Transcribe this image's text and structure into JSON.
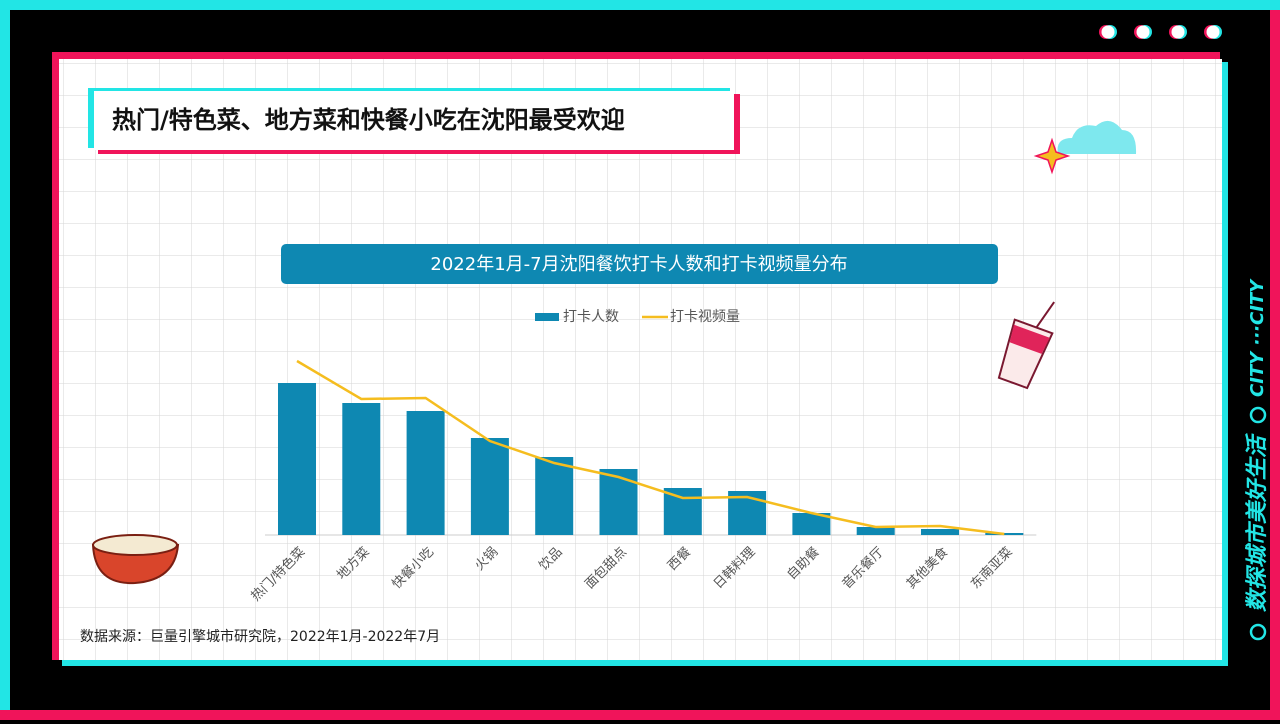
{
  "header": {
    "title": "热门/特色菜、地方菜和快餐小吃在沈阳最受欢迎"
  },
  "source": "数据来源：巨量引擎城市研究院，2022年1月-2022年7月",
  "side_text": {
    "main": "数探城市美好生活",
    "tag": "CITY ···CITY"
  },
  "chart_data": {
    "type": "bar",
    "title": "2022年1月-7月沈阳餐饮打卡人数和打卡视频量分布",
    "categories": [
      "热门/特色菜",
      "地方菜",
      "快餐小吃",
      "火锅",
      "饮品",
      "面包甜点",
      "西餐",
      "日韩料理",
      "自助餐",
      "音乐餐厅",
      "其他美食",
      "东南亚菜"
    ],
    "series": [
      {
        "name": "打卡人数",
        "type": "bar",
        "color": "#0e88b2",
        "values": [
          152,
          132,
          124,
          97,
          78,
          66,
          47,
          44,
          22,
          8,
          6,
          2
        ]
      },
      {
        "name": "打卡视频量",
        "type": "line",
        "color": "#f5bd1f",
        "values": [
          174,
          136,
          137,
          94,
          72,
          58,
          37,
          38,
          22,
          8,
          9,
          1
        ]
      }
    ],
    "ylim": [
      0,
      180
    ],
    "grid": false,
    "legend": "top"
  }
}
